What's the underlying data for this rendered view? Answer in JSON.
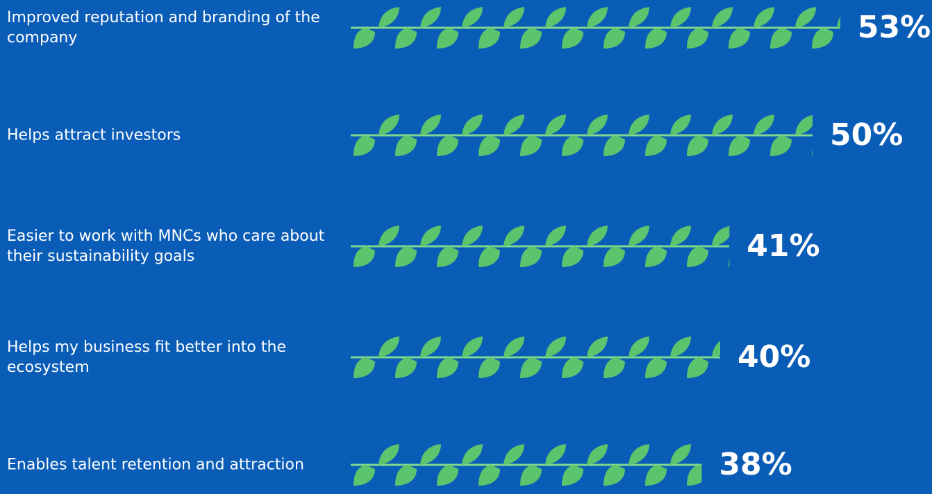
{
  "chart_data": {
    "type": "bar",
    "orientation": "horizontal",
    "categories": [
      "Improved reputation and branding of the company",
      "Helps attract investors",
      "Easier to work with MNCs who care about their sustainability goals",
      "Helps my business fit better into the ecosystem",
      "Enables talent retention and attraction"
    ],
    "values": [
      53,
      50,
      41,
      40,
      38
    ],
    "value_labels": [
      "53%",
      "50%",
      "41%",
      "40%",
      "38%"
    ],
    "color": "#5cc46c"
  }
}
